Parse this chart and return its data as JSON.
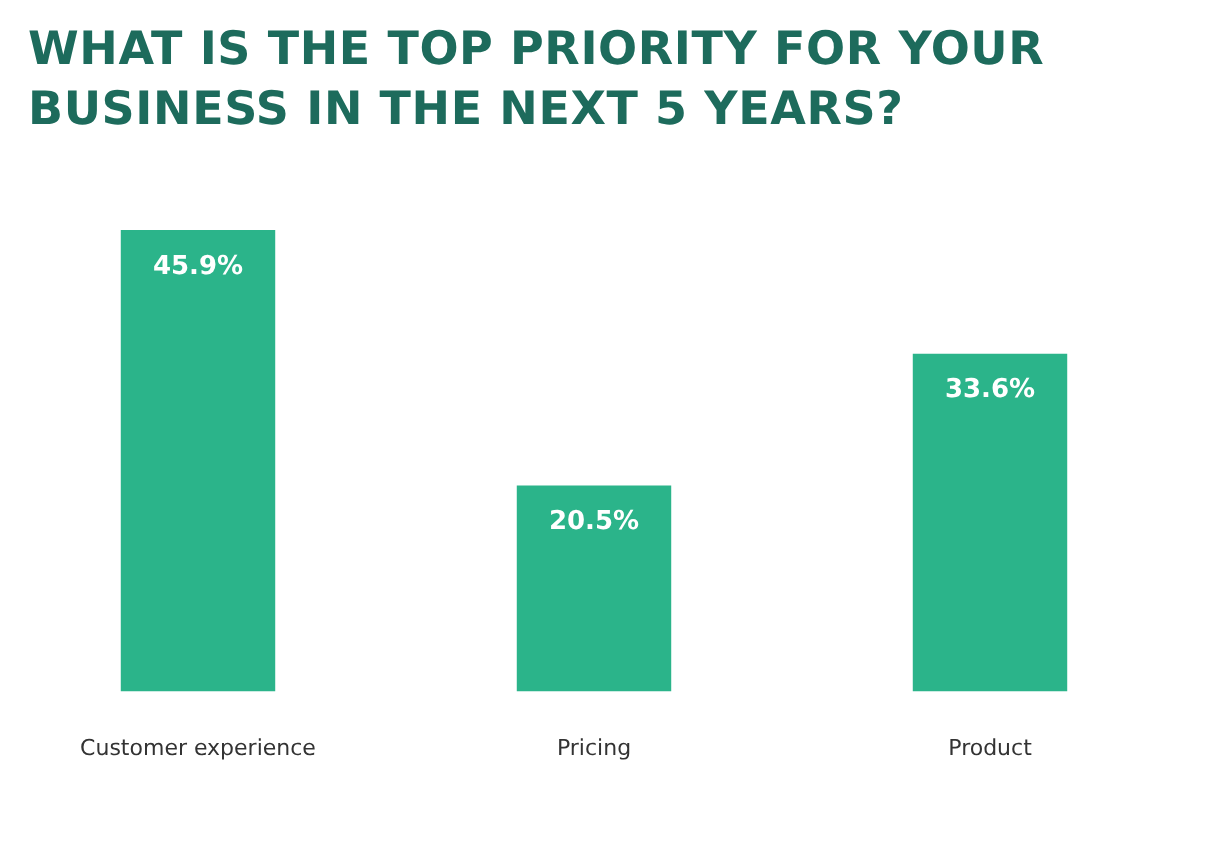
{
  "chart_data": {
    "type": "bar",
    "title": "WHAT IS THE TOP PRIORITY FOR YOUR BUSINESS IN THE NEXT 5 YEARS?",
    "categories": [
      "Customer experience",
      "Pricing",
      "Product"
    ],
    "values": [
      45.9,
      20.5,
      33.6
    ],
    "value_labels": [
      "45.9%",
      "20.5%",
      "33.6%"
    ],
    "color": "#2bb48a",
    "grid": false,
    "legend": false
  }
}
